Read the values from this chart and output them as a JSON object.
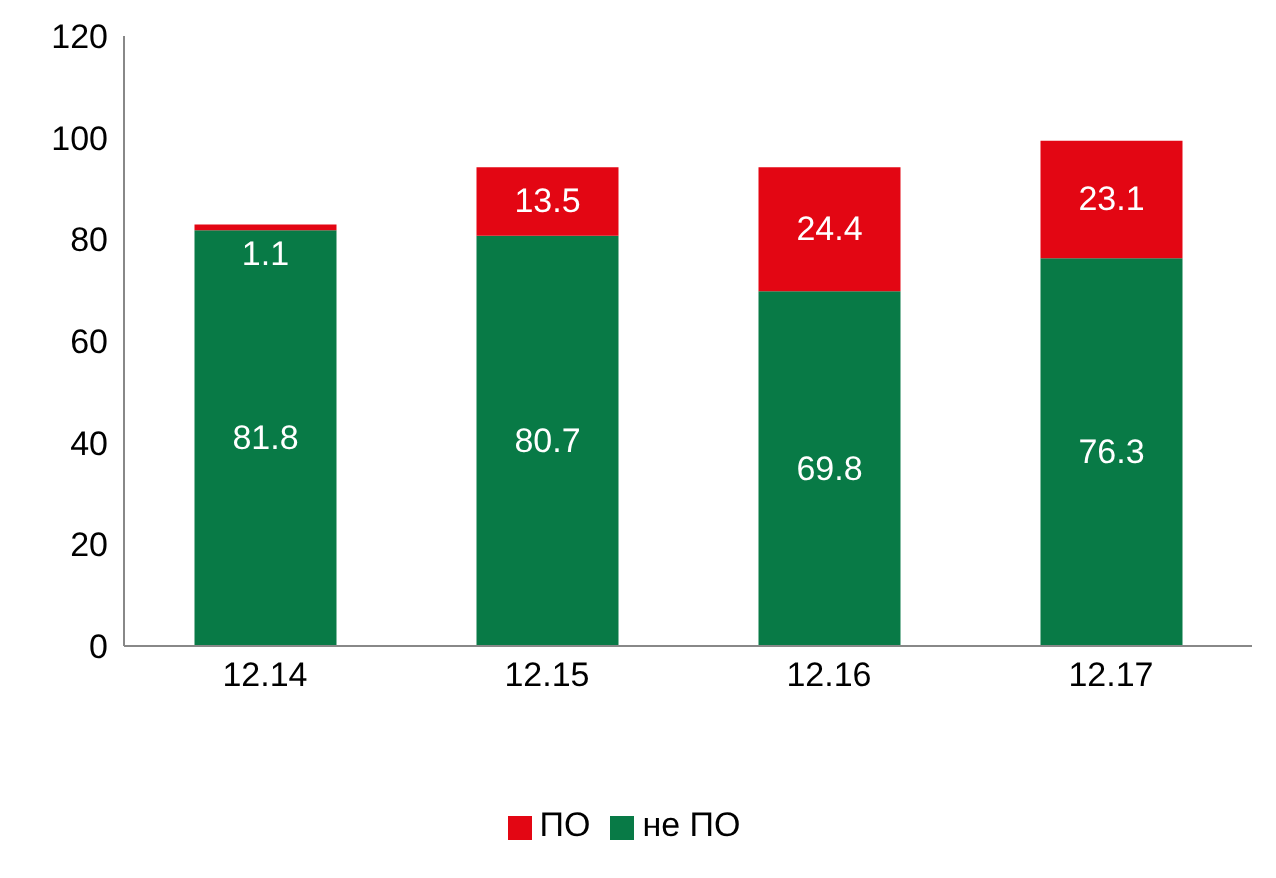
{
  "chart_data": {
    "type": "bar",
    "stacked": true,
    "categories": [
      "12.14",
      "12.15",
      "12.16",
      "12.17"
    ],
    "series": [
      {
        "name": "не ПО",
        "color": "#087a46",
        "values": [
          81.8,
          80.7,
          69.8,
          76.3
        ]
      },
      {
        "name": "ПО",
        "color": "#e30613",
        "values": [
          1.1,
          13.5,
          24.4,
          23.1
        ]
      }
    ],
    "ylim": [
      0,
      120
    ],
    "yticks": [
      0,
      20,
      40,
      60,
      80,
      100,
      120
    ],
    "grid": false,
    "legend": "bottom",
    "data_labels": true
  }
}
